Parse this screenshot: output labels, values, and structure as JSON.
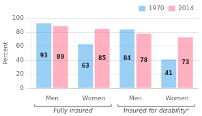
{
  "chart_data": {
    "type": "bar",
    "categories": [
      "Men",
      "Women",
      "Men",
      "Women"
    ],
    "sections": [
      "Fully insured",
      "Fully insured",
      "Insured for disabilityᵃ",
      "Insured for disabilityᵃ"
    ],
    "series": [
      {
        "name": "1970",
        "values": [
          93,
          63,
          84,
          41
        ]
      },
      {
        "name": "2014",
        "values": [
          89,
          85,
          78,
          73
        ]
      }
    ],
    "y_label": "Percent",
    "ylim": [
      0,
      100
    ],
    "yticks": [
      0,
      20,
      40,
      60,
      80,
      100
    ],
    "grid": true,
    "legend": "top-right",
    "data_labels": true
  }
}
